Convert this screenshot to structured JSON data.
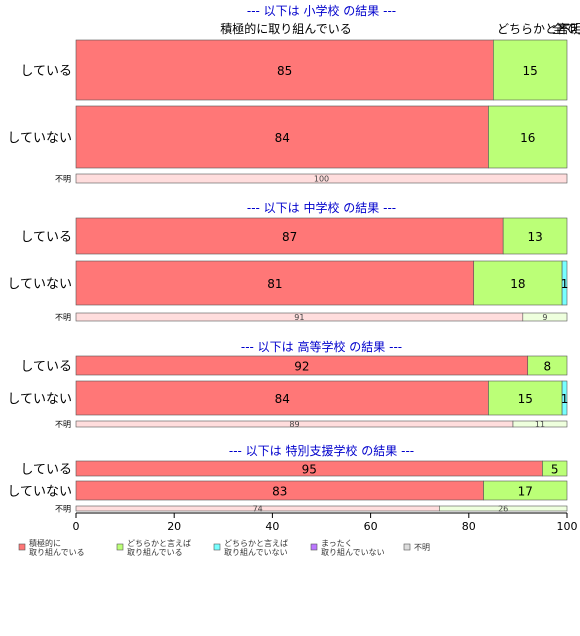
{
  "chart_data": {
    "type": "bar",
    "orientation": "horizontal",
    "stacked": true,
    "xlim": [
      0,
      100
    ],
    "x_ticks": [
      "0",
      "20",
      "40",
      "60",
      "80",
      "100"
    ],
    "top_labels": [
      "積極的に取り組んでいる",
      "どちらかと言えば",
      "不明",
      "全て"
    ],
    "colors": {
      "actively": "#ff7777",
      "somewhat_yes": "#bbff77",
      "somewhat_no": "#77ffff",
      "not_at_all": "#bb77ff",
      "unknown": "#dddddd",
      "unknown_row_fill": "#ffdddd",
      "section_title": "#0000cc"
    },
    "legend": {
      "placement": "bottom",
      "items": [
        {
          "key": "actively",
          "label": [
            "積極的に",
            "取り組んでいる"
          ]
        },
        {
          "key": "somewhat_yes",
          "label": [
            "どちらかと言えば",
            "取り組んでいる"
          ]
        },
        {
          "key": "somewhat_no",
          "label": [
            "どちらかと言えば",
            "取り組んでいない"
          ]
        },
        {
          "key": "not_at_all",
          "label": [
            "まったく",
            "取り組んでいない"
          ]
        },
        {
          "key": "unknown",
          "label": [
            "不明"
          ]
        }
      ]
    },
    "sections": [
      {
        "title": "--- 以下は 小学校 の結果 ---",
        "rows": [
          {
            "label": "している",
            "values": [
              85,
              15,
              0,
              0,
              0
            ],
            "data_labels": [
              "85",
              "15",
              "",
              "",
              ""
            ]
          },
          {
            "label": "していない",
            "values": [
              84,
              16,
              0,
              0,
              0
            ],
            "data_labels": [
              "84",
              "16",
              "",
              "",
              ""
            ]
          },
          {
            "label": "不明",
            "small": true,
            "values": [
              100,
              0,
              0,
              0,
              0
            ],
            "data_labels": [
              "100",
              "",
              "",
              "",
              ""
            ]
          }
        ]
      },
      {
        "title": "--- 以下は 中学校 の結果 ---",
        "rows": [
          {
            "label": "している",
            "values": [
              87,
              13,
              0,
              0,
              0
            ],
            "data_labels": [
              "87",
              "13",
              "",
              "",
              ""
            ]
          },
          {
            "label": "していない",
            "values": [
              81,
              18,
              1,
              0,
              0
            ],
            "data_labels": [
              "81",
              "18",
              "1",
              "",
              ""
            ]
          },
          {
            "label": "不明",
            "small": true,
            "values": [
              91,
              9,
              0,
              0,
              0
            ],
            "data_labels": [
              "91",
              "9",
              "",
              "",
              ""
            ]
          }
        ]
      },
      {
        "title": "--- 以下は 高等学校 の結果 ---",
        "rows": [
          {
            "label": "している",
            "values": [
              92,
              8,
              0,
              0,
              0
            ],
            "data_labels": [
              "92",
              "8",
              "",
              "",
              ""
            ]
          },
          {
            "label": "していない",
            "values": [
              84,
              15,
              1,
              0,
              0
            ],
            "data_labels": [
              "84",
              "15",
              "1",
              "",
              ""
            ]
          },
          {
            "label": "不明",
            "small": true,
            "values": [
              89,
              11,
              0,
              0,
              0
            ],
            "data_labels": [
              "89",
              "11",
              "",
              "",
              ""
            ]
          }
        ]
      },
      {
        "title": "--- 以下は 特別支援学校 の結果 ---",
        "rows": [
          {
            "label": "している",
            "values": [
              95,
              5,
              0,
              0,
              0
            ],
            "data_labels": [
              "95",
              "5",
              "",
              "",
              ""
            ]
          },
          {
            "label": "していない",
            "values": [
              83,
              17,
              0,
              0,
              0
            ],
            "data_labels": [
              "83",
              "17",
              "",
              "",
              ""
            ]
          },
          {
            "label": "不明",
            "small": true,
            "values": [
              74,
              26,
              0,
              0,
              0
            ],
            "data_labels": [
              "74",
              "26",
              "",
              "",
              ""
            ]
          }
        ]
      }
    ]
  }
}
